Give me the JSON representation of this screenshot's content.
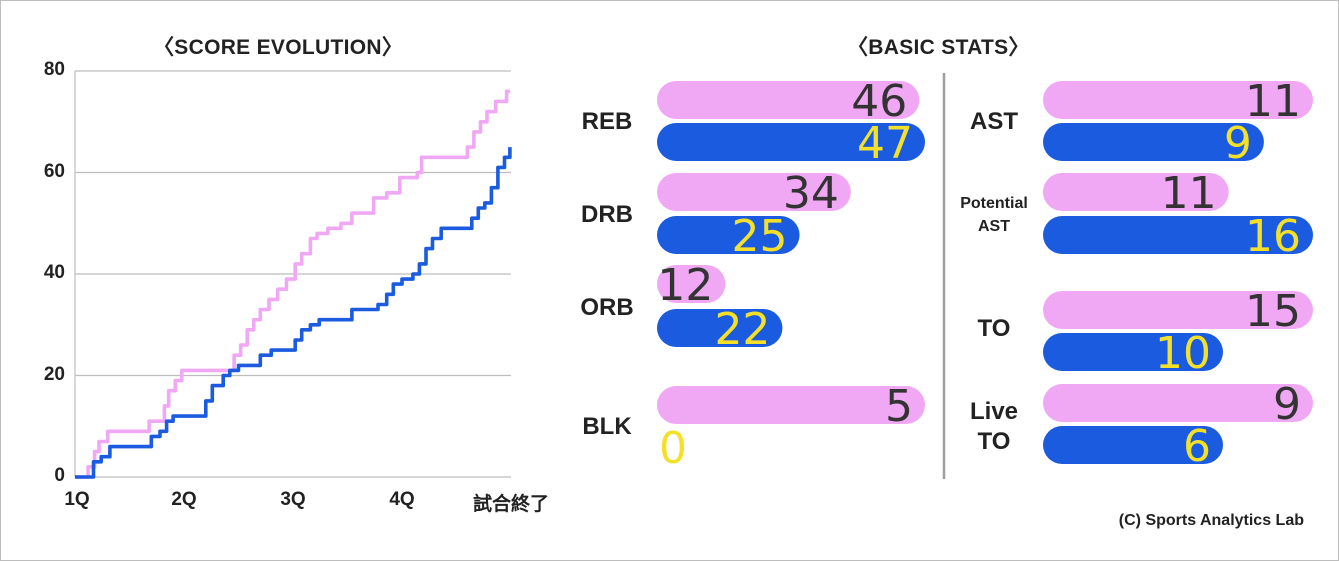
{
  "left_title": "〈SCORE EVOLUTION〉",
  "right_title": "〈BASIC STATS〉",
  "credit": "(C) Sports Analytics Lab",
  "colors": {
    "team_a": "#f0a8f5",
    "team_b": "#1a5be0",
    "num_a": "#333333",
    "num_b": "#f5e029",
    "grid": "#bdbdbd"
  },
  "chart_data": [
    {
      "type": "line",
      "title": "〈SCORE EVOLUTION〉",
      "x_ticks": [
        "1Q",
        "2Q",
        "3Q",
        "4Q",
        "試合終了"
      ],
      "y_ticks": [
        0,
        20,
        40,
        60,
        80
      ],
      "xlim": [
        0,
        40
      ],
      "ylim": [
        0,
        80
      ],
      "grid": "horizontal",
      "series": [
        {
          "color": "#f0a8f5",
          "points": [
            [
              0,
              0
            ],
            [
              1.2,
              2
            ],
            [
              1.8,
              5
            ],
            [
              2.2,
              7
            ],
            [
              3,
              9
            ],
            [
              6.5,
              9
            ],
            [
              6.8,
              11
            ],
            [
              8,
              11
            ],
            [
              8.2,
              14
            ],
            [
              8.6,
              17
            ],
            [
              9.2,
              19
            ],
            [
              9.8,
              21
            ],
            [
              14,
              21
            ],
            [
              14.6,
              24
            ],
            [
              15.2,
              26
            ],
            [
              15.8,
              29
            ],
            [
              16.4,
              31
            ],
            [
              17,
              33
            ],
            [
              17.8,
              35
            ],
            [
              18.6,
              37
            ],
            [
              19.4,
              39
            ],
            [
              20.2,
              42
            ],
            [
              20.8,
              44
            ],
            [
              21.6,
              47
            ],
            [
              22.2,
              48
            ],
            [
              23.2,
              49
            ],
            [
              24.4,
              50
            ],
            [
              25.4,
              52
            ],
            [
              26.8,
              52
            ],
            [
              27.4,
              55
            ],
            [
              28.6,
              56
            ],
            [
              29.8,
              59
            ],
            [
              31.4,
              60
            ],
            [
              31.8,
              63
            ],
            [
              35.4,
              63
            ],
            [
              36,
              65
            ],
            [
              36.6,
              68
            ],
            [
              37.2,
              70
            ],
            [
              37.8,
              72
            ],
            [
              38.6,
              74
            ],
            [
              39.6,
              76
            ],
            [
              39.9,
              76
            ]
          ]
        },
        {
          "color": "#1a5be0",
          "points": [
            [
              0,
              0
            ],
            [
              1.5,
              0
            ],
            [
              1.7,
              3
            ],
            [
              2.4,
              4
            ],
            [
              3.2,
              6
            ],
            [
              6.5,
              6
            ],
            [
              7,
              8
            ],
            [
              7.8,
              9
            ],
            [
              8.4,
              11
            ],
            [
              9,
              12
            ],
            [
              11.6,
              12
            ],
            [
              12,
              15
            ],
            [
              12.6,
              18
            ],
            [
              13.6,
              20
            ],
            [
              14.2,
              21
            ],
            [
              15,
              22
            ],
            [
              17,
              24
            ],
            [
              18,
              25
            ],
            [
              19.8,
              25
            ],
            [
              20.2,
              27
            ],
            [
              20.8,
              29
            ],
            [
              21.6,
              30
            ],
            [
              22.4,
              31
            ],
            [
              25,
              31
            ],
            [
              25.4,
              33
            ],
            [
              27.4,
              33
            ],
            [
              27.8,
              34
            ],
            [
              28.6,
              36
            ],
            [
              29.2,
              38
            ],
            [
              30,
              39
            ],
            [
              31,
              40
            ],
            [
              31.6,
              42
            ],
            [
              32.2,
              45
            ],
            [
              32.8,
              47
            ],
            [
              33.6,
              49
            ],
            [
              36,
              49
            ],
            [
              36.4,
              51
            ],
            [
              37,
              53
            ],
            [
              37.6,
              54
            ],
            [
              38.2,
              57
            ],
            [
              38.8,
              61
            ],
            [
              39.4,
              63
            ],
            [
              39.9,
              65
            ]
          ]
        }
      ]
    },
    {
      "type": "bar",
      "title": "〈BASIC STATS〉",
      "layout": "paired horizontal bars",
      "stats": [
        {
          "label": "REB",
          "a": 46,
          "b": 47,
          "max": 47
        },
        {
          "label": "DRB",
          "a": 34,
          "b": 25,
          "max": 47
        },
        {
          "label": "ORB",
          "a": 12,
          "b": 22,
          "max": 47
        },
        {
          "label": "BLK",
          "a": 5,
          "b": 0,
          "max": 5
        },
        {
          "label": "AST",
          "a": 11,
          "b": 9,
          "max": 11
        },
        {
          "label": "Potential\nAST",
          "a": 11,
          "b": 16,
          "max": 16
        },
        {
          "label": "TO",
          "a": 15,
          "b": 10,
          "max": 15
        },
        {
          "label": "Live\nTO",
          "a": 9,
          "b": 6,
          "max": 9
        }
      ]
    }
  ]
}
